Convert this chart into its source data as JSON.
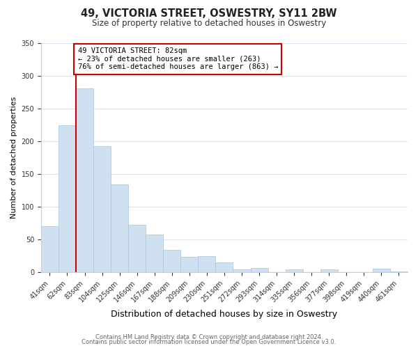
{
  "title": "49, VICTORIA STREET, OSWESTRY, SY11 2BW",
  "subtitle": "Size of property relative to detached houses in Oswestry",
  "xlabel": "Distribution of detached houses by size in Oswestry",
  "ylabel": "Number of detached properties",
  "bin_labels": [
    "41sqm",
    "62sqm",
    "83sqm",
    "104sqm",
    "125sqm",
    "146sqm",
    "167sqm",
    "188sqm",
    "209sqm",
    "230sqm",
    "251sqm",
    "272sqm",
    "293sqm",
    "314sqm",
    "335sqm",
    "356sqm",
    "377sqm",
    "398sqm",
    "419sqm",
    "440sqm",
    "461sqm"
  ],
  "bar_heights": [
    70,
    224,
    280,
    193,
    134,
    73,
    58,
    34,
    24,
    25,
    15,
    5,
    7,
    0,
    5,
    0,
    5,
    0,
    0,
    6,
    1
  ],
  "bar_color": "#cfe0f0",
  "bar_edge_color": "#a8c4e0",
  "highlight_bar_index": 2,
  "highlight_line_color": "#cc0000",
  "ylim": [
    0,
    350
  ],
  "yticks": [
    0,
    50,
    100,
    150,
    200,
    250,
    300,
    350
  ],
  "annotation_title": "49 VICTORIA STREET: 82sqm",
  "annotation_line1": "← 23% of detached houses are smaller (263)",
  "annotation_line2": "76% of semi-detached houses are larger (863) →",
  "annotation_box_color": "#ffffff",
  "annotation_border_color": "#cc0000",
  "footer_line1": "Contains HM Land Registry data © Crown copyright and database right 2024.",
  "footer_line2": "Contains public sector information licensed under the Open Government Licence v3.0.",
  "background_color": "#ffffff",
  "plot_background_color": "#ffffff",
  "grid_color": "#d8e4f0"
}
